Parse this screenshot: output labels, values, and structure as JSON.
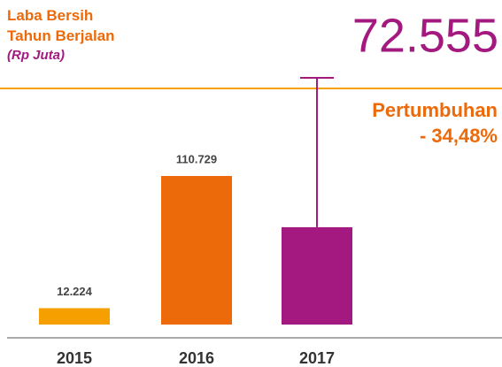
{
  "chart_data": {
    "type": "bar",
    "title": "Laba Bersih Tahun Berjalan",
    "subtitle": "(Rp Juta)",
    "categories": [
      "2015",
      "2016",
      "2017"
    ],
    "values": [
      12224,
      110729,
      72555
    ],
    "value_labels": [
      "12.224",
      "110.729",
      "72.555"
    ],
    "colors": [
      "#f5a000",
      "#ec6a0a",
      "#a3197f"
    ],
    "annotation": {
      "label": "Pertumbuhan",
      "text": "- 34,48%"
    }
  }
}
